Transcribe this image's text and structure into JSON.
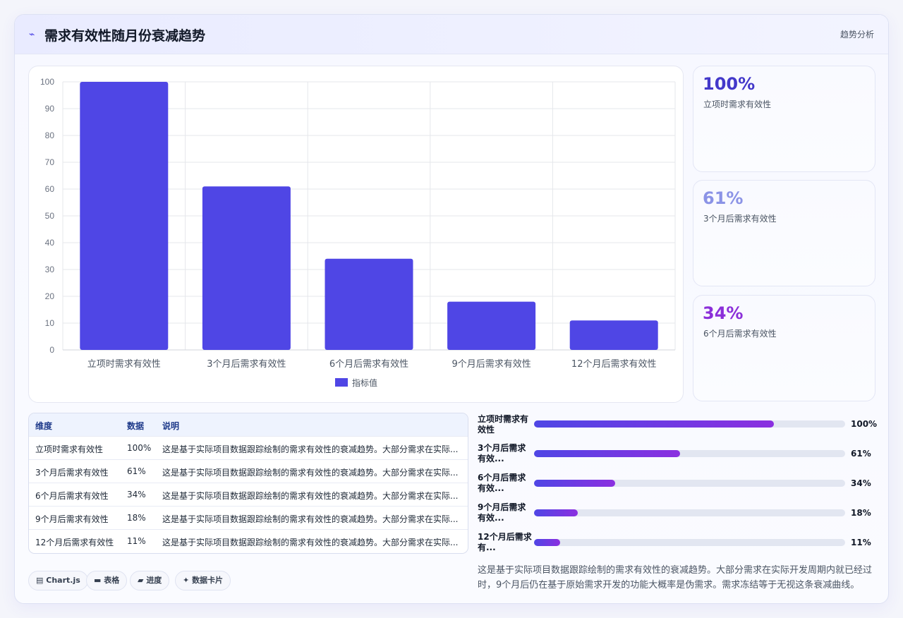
{
  "header": {
    "title": "需求有效性随月份衰减趋势",
    "tag": "趋势分析",
    "icon": "trend-icon"
  },
  "chart_data": {
    "type": "bar",
    "categories": [
      "立项时需求有效性",
      "3个月后需求有效性",
      "6个月后需求有效性",
      "9个月后需求有效性",
      "12个月后需求有效性"
    ],
    "series": [
      {
        "name": "指标值",
        "values": [
          100,
          61,
          34,
          18,
          11
        ],
        "color": "#4f46e5"
      }
    ],
    "ylim": [
      0,
      100
    ],
    "yticks": [
      0,
      10,
      20,
      30,
      40,
      50,
      60,
      70,
      80,
      90,
      100
    ],
    "grid": true,
    "legend": "bottom"
  },
  "stats": [
    {
      "value": "100%",
      "label": "立项时需求有效性",
      "color": "#4338ca"
    },
    {
      "value": "61%",
      "label": "3个月后需求有效性",
      "color": "#8b93e6"
    },
    {
      "value": "34%",
      "label": "6个月后需求有效性",
      "color": "#8b2fd9"
    }
  ],
  "table": {
    "headers": [
      "维度",
      "数据",
      "说明"
    ],
    "rows": [
      [
        "立项时需求有效性",
        "100%",
        "这是基于实际项目数据跟踪绘制的需求有效性的衰减趋势。大部分需求在实际..."
      ],
      [
        "3个月后需求有效性",
        "61%",
        "这是基于实际项目数据跟踪绘制的需求有效性的衰减趋势。大部分需求在实际..."
      ],
      [
        "6个月后需求有效性",
        "34%",
        "这是基于实际项目数据跟踪绘制的需求有效性的衰减趋势。大部分需求在实际..."
      ],
      [
        "9个月后需求有效性",
        "18%",
        "这是基于实际项目数据跟踪绘制的需求有效性的衰减趋势。大部分需求在实际..."
      ],
      [
        "12个月后需求有效性",
        "11%",
        "这是基于实际项目数据跟踪绘制的需求有效性的衰减趋势。大部分需求在实际..."
      ]
    ]
  },
  "pills": [
    {
      "icon": "chart-icon",
      "glyph": "▤",
      "label": "Chart.js"
    },
    {
      "icon": "table-icon",
      "glyph": "▬",
      "label": "表格"
    },
    {
      "icon": "progress-icon",
      "glyph": "▰",
      "label": "进度"
    },
    {
      "icon": "sparkle-icon",
      "glyph": "✦",
      "label": "数据卡片"
    }
  ],
  "progress": [
    {
      "label": "立项时需求有效性",
      "value": "100%",
      "fill": 0.77
    },
    {
      "label": "3个月后需求有效...",
      "value": "61%",
      "fill": 0.47
    },
    {
      "label": "6个月后需求有效...",
      "value": "34%",
      "fill": 0.26
    },
    {
      "label": "9个月后需求有效...",
      "value": "18%",
      "fill": 0.14
    },
    {
      "label": "12个月后需求有...",
      "value": "11%",
      "fill": 0.085
    }
  ],
  "description": "这是基于实际项目数据跟踪绘制的需求有效性的衰减趋势。大部分需求在实际开发周期内就已经过时，9个月后仍在基于原始需求开发的功能大概率是伪需求。需求冻结等于无视这条衰减曲线。"
}
